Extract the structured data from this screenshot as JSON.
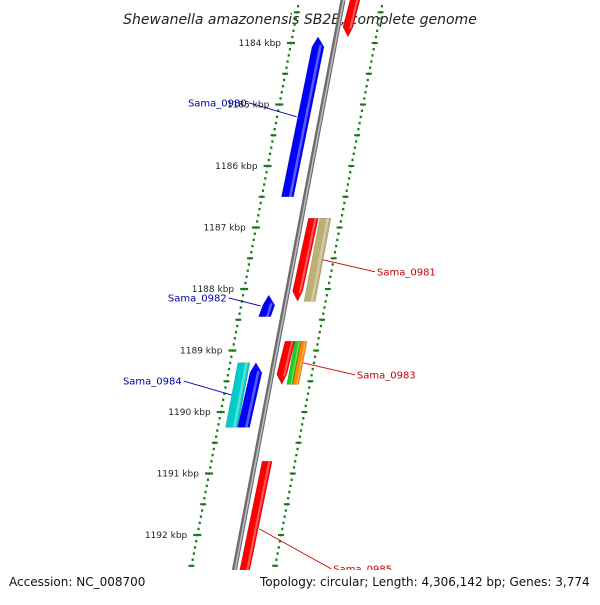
{
  "title": "Shewanella amazonensis SB2B, complete genome",
  "accession_text": "Accession: NC_008700",
  "topology_text": "Topology: circular; Length: 4,306,142 bp; Genes: 3,774",
  "colors": {
    "forward_label": "#cc0000",
    "reverse_label": "#0000aa",
    "tick": "#1a7a1a",
    "backbone": "#8a8a8a"
  },
  "ticks": [
    {
      "label": "1184 kbp"
    },
    {
      "label": "1185 kbp"
    },
    {
      "label": "1186 kbp"
    },
    {
      "label": "1187 kbp"
    },
    {
      "label": "1188 kbp"
    },
    {
      "label": "1189 kbp"
    },
    {
      "label": "1190 kbp"
    },
    {
      "label": "1191 kbp"
    },
    {
      "label": "1192 kbp"
    }
  ],
  "features": [
    {
      "strand": "forward",
      "color": "#ff0000",
      "start_kbp": 1183.3,
      "end_kbp": 1183.9,
      "label": ""
    },
    {
      "strand": "reverse",
      "color": "#0000ff",
      "start_kbp": 1183.9,
      "end_kbp": 1186.5,
      "label": "Sama_0980"
    },
    {
      "strand": "forward",
      "color": "#ff0000",
      "start_kbp": 1186.85,
      "end_kbp": 1188.2,
      "label": ""
    },
    {
      "strand": "forward2",
      "color": "#bdb076",
      "start_kbp": 1186.85,
      "end_kbp": 1188.2,
      "label": "Sama_0981"
    },
    {
      "strand": "reverse",
      "color": "#0000ff",
      "start_kbp": 1188.1,
      "end_kbp": 1188.45,
      "label": "Sama_0982"
    },
    {
      "strand": "forward",
      "color": "#ff0000",
      "start_kbp": 1188.85,
      "end_kbp": 1189.55,
      "label": ""
    },
    {
      "strand": "forward2a",
      "color": "#22cc22",
      "start_kbp": 1188.85,
      "end_kbp": 1189.55,
      "label": ""
    },
    {
      "strand": "forward2b",
      "color": "#ff8800",
      "start_kbp": 1188.85,
      "end_kbp": 1189.55,
      "label": "Sama_0983"
    },
    {
      "strand": "reverse2",
      "color": "#00cccc",
      "start_kbp": 1189.2,
      "end_kbp": 1190.25,
      "label": "Sama_0984"
    },
    {
      "strand": "reverse",
      "color": "#0000ff",
      "start_kbp": 1189.2,
      "end_kbp": 1190.25,
      "label": ""
    },
    {
      "strand": "forward",
      "color": "#ff0000",
      "start_kbp": 1190.8,
      "end_kbp": 1193.0,
      "label": "Sama_0985"
    }
  ]
}
